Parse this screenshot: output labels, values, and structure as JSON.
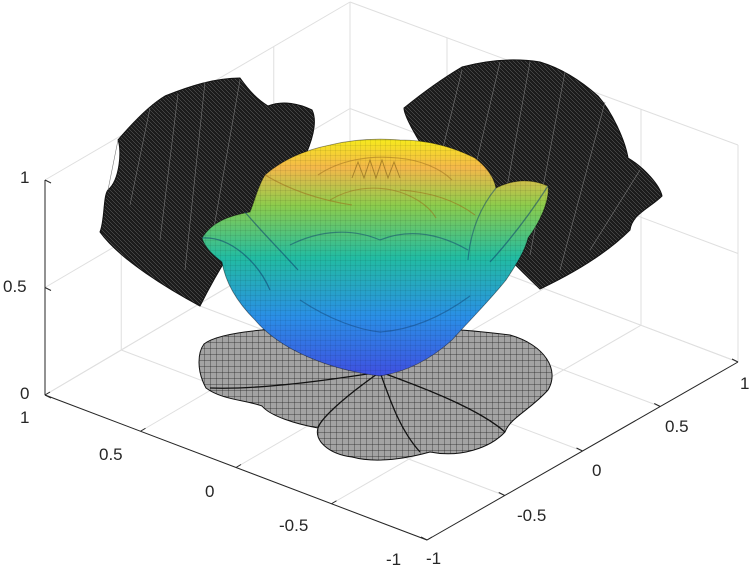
{
  "chart_data": {
    "type": "surface3d",
    "title": "",
    "xlabel": "",
    "ylabel": "",
    "zlabel": "",
    "xlim": [
      -1,
      1
    ],
    "ylim": [
      -1,
      1
    ],
    "zlim": [
      0,
      1
    ],
    "grid": true,
    "box": true,
    "colormap": "parula",
    "colors": {
      "low": "#3d58e8",
      "mid": "#1fbfa6",
      "high": "#f3e614",
      "projection_fill": "#1f1f1f",
      "projection_face": "#9e9e9e",
      "axis": "#262626",
      "grid": "#dfdfdf"
    },
    "ticks": {
      "x": [
        "-1",
        "-0.5",
        "0",
        "0.5",
        "1"
      ],
      "y": [
        "-1",
        "-0.5",
        "0",
        "0.5",
        "1"
      ],
      "z": [
        "0",
        "0.5",
        "1"
      ]
    },
    "surfaces": [
      {
        "name": "",
        "kind": "rose-surface",
        "z_range": [
          0,
          1
        ]
      },
      {
        "name": "",
        "kind": "projection-xz-wall",
        "wall": "back-left"
      },
      {
        "name": "",
        "kind": "projection-yz-wall",
        "wall": "back-right"
      },
      {
        "name": "",
        "kind": "projection-xy-floor",
        "wall": "floor"
      }
    ]
  }
}
